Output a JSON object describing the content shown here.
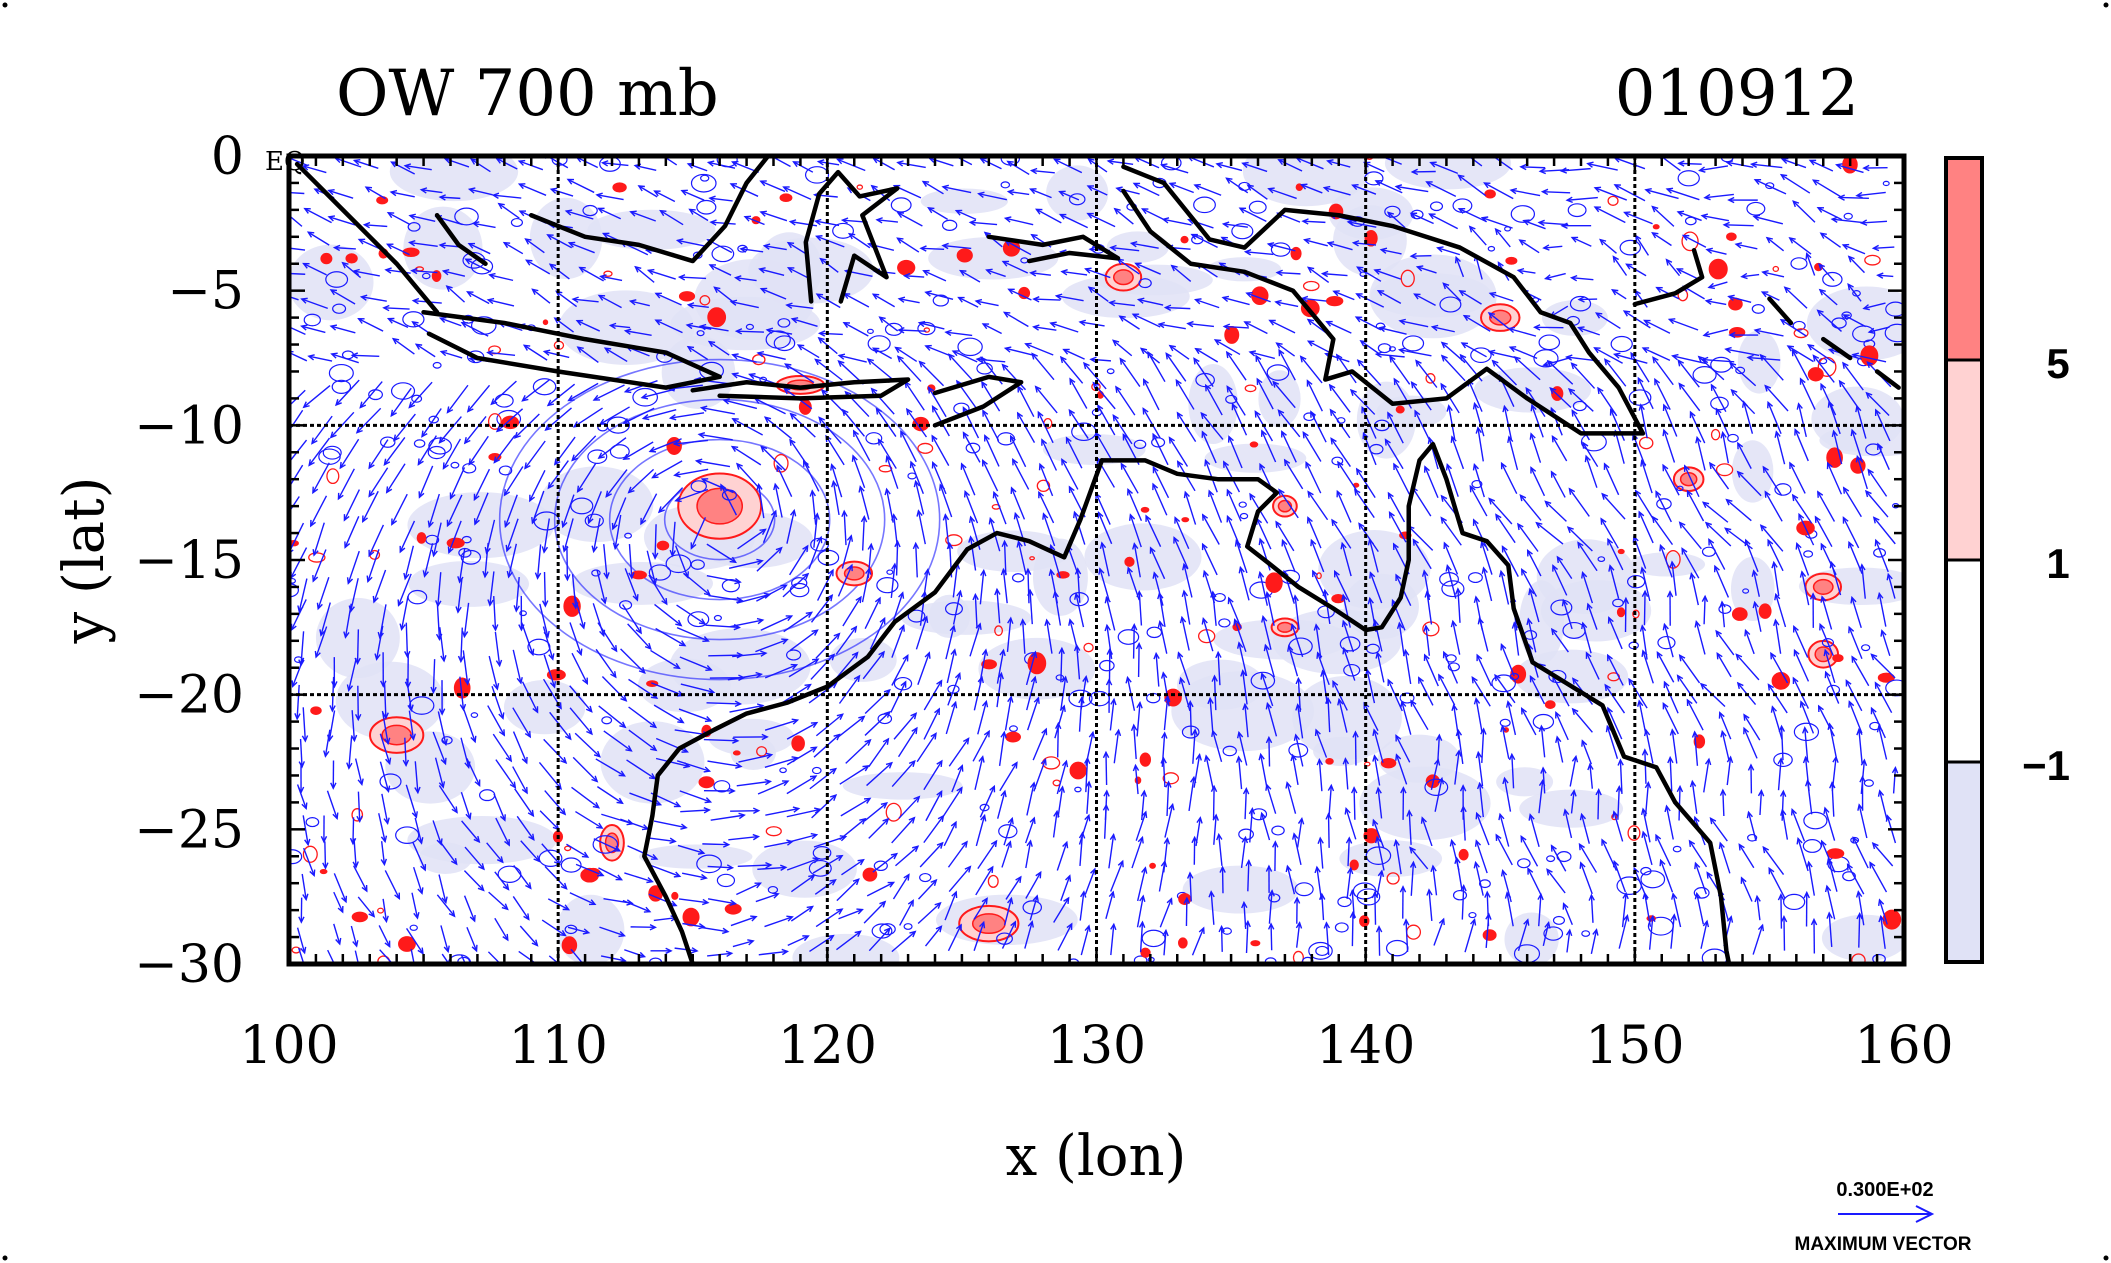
{
  "chart_data": {
    "type": "contour-vector-map",
    "title_left": "OW 700 mb",
    "title_right": "010912",
    "xlabel": "x (lon)",
    "ylabel": "y (lat)",
    "xlim": [
      100,
      160
    ],
    "ylim": [
      -30,
      0
    ],
    "x_ticks": [
      100,
      110,
      120,
      130,
      140,
      150,
      160
    ],
    "x_tick_labels": [
      "100",
      "110",
      "120",
      "130",
      "140",
      "150",
      "160"
    ],
    "y_ticks": [
      0,
      -5,
      -10,
      -15,
      -20,
      -25,
      -30
    ],
    "y_tick_labels": [
      "0",
      "−5",
      "−10",
      "−15",
      "−20",
      "−25",
      "−30"
    ],
    "corner_label": "EQ",
    "grid": true,
    "grid_lines_x": [
      110,
      120,
      130,
      140,
      150
    ],
    "grid_lines_y": [
      -10,
      -20
    ],
    "colorbar": {
      "levels": [
        "5",
        "1",
        "−1"
      ],
      "colors": [
        "#ff8282",
        "#ffd2d2",
        "#ffffff",
        "#e0e2f6"
      ]
    },
    "vector_key": {
      "label_top": "0.300E+02",
      "label_bottom": "MAXIMUM VECTOR"
    },
    "colors": {
      "vector": "#1a1aff",
      "positive_contour": "#ff1a1a",
      "negative_shade": "#e0e2f6",
      "coast": "#000000"
    },
    "features": {
      "cyclone_center": [
        116,
        -13.5
      ],
      "positive_blobs": [
        [
          104,
          -21.5,
          1.8,
          1.2
        ],
        [
          116,
          -13,
          2.8,
          2.2
        ],
        [
          121,
          -15.5,
          1.2,
          0.8
        ],
        [
          126,
          -28.5,
          2.0,
          1.2
        ],
        [
          131,
          -4.5,
          1.2,
          0.9
        ],
        [
          137,
          -13,
          0.8,
          0.7
        ],
        [
          145,
          -6,
          1.3,
          0.9
        ],
        [
          152,
          -12,
          1.0,
          0.8
        ],
        [
          157,
          -16,
          1.2,
          0.9
        ],
        [
          157,
          -18.5,
          1.0,
          0.9
        ],
        [
          119,
          -8.5,
          1.6,
          0.6
        ],
        [
          137,
          -17.5,
          0.9,
          0.6
        ],
        [
          112,
          -25.5,
          0.8,
          1.2
        ]
      ],
      "coastlines": [
        [
          [
            100.3,
            -0.3
          ],
          [
            102,
            -2
          ],
          [
            104,
            -4
          ],
          [
            105.5,
            -5.8
          ]
        ],
        [
          [
            105,
            -5.8
          ],
          [
            108,
            -6.2
          ],
          [
            111,
            -6.8
          ],
          [
            114,
            -7.3
          ],
          [
            116,
            -8.2
          ],
          [
            114,
            -8.6
          ],
          [
            110,
            -8.0
          ],
          [
            107,
            -7.5
          ],
          [
            105.2,
            -6.6
          ]
        ],
        [
          [
            115,
            -8.7
          ],
          [
            117,
            -8.4
          ],
          [
            119,
            -8.6
          ],
          [
            121,
            -8.4
          ],
          [
            123,
            -8.3
          ],
          [
            122,
            -8.9
          ],
          [
            119,
            -9.0
          ],
          [
            116,
            -8.9
          ]
        ],
        [
          [
            124,
            -8.8
          ],
          [
            126,
            -8.2
          ],
          [
            127.2,
            -8.4
          ],
          [
            125.8,
            -9.3
          ],
          [
            124,
            -10.0
          ]
        ],
        [
          [
            105.5,
            -2.2
          ],
          [
            106.3,
            -3.3
          ],
          [
            107.3,
            -4.0
          ]
        ],
        [
          [
            109,
            -2.2
          ],
          [
            111,
            -3.0
          ],
          [
            113,
            -3.3
          ],
          [
            115,
            -3.9
          ],
          [
            116.2,
            -2.6
          ],
          [
            117,
            -1.0
          ],
          [
            117.8,
            0
          ]
        ],
        [
          [
            119.4,
            -5.4
          ],
          [
            119.2,
            -3.2
          ],
          [
            119.7,
            -1.4
          ],
          [
            120.4,
            -0.6
          ],
          [
            121.2,
            -1.5
          ],
          [
            122.6,
            -1.2
          ],
          [
            121.3,
            -2.2
          ],
          [
            122.2,
            -4.5
          ],
          [
            121,
            -3.7
          ],
          [
            120.5,
            -5.4
          ]
        ],
        [
          [
            126,
            -3.0
          ],
          [
            128,
            -3.3
          ],
          [
            129.5,
            -3.0
          ],
          [
            130.8,
            -3.8
          ],
          [
            129,
            -3.6
          ],
          [
            127.5,
            -3.9
          ]
        ],
        [
          [
            131,
            -0.4
          ],
          [
            132.5,
            -1.0
          ],
          [
            134.2,
            -3.1
          ],
          [
            135.5,
            -3.4
          ],
          [
            137,
            -2.0
          ],
          [
            139,
            -2.2
          ],
          [
            141,
            -2.6
          ],
          [
            143.5,
            -3.4
          ],
          [
            145.5,
            -4.5
          ],
          [
            146.5,
            -5.8
          ],
          [
            147.6,
            -6.2
          ],
          [
            148.3,
            -7.3
          ],
          [
            149.4,
            -8.6
          ],
          [
            150.3,
            -10.3
          ],
          [
            148,
            -10.3
          ],
          [
            146,
            -9.0
          ],
          [
            144.5,
            -7.9
          ],
          [
            143,
            -9.0
          ],
          [
            141,
            -9.2
          ],
          [
            139.5,
            -8.0
          ],
          [
            138.5,
            -8.3
          ],
          [
            138.8,
            -6.8
          ],
          [
            137.3,
            -5.0
          ],
          [
            135.5,
            -4.3
          ],
          [
            133.5,
            -4.0
          ],
          [
            132,
            -2.8
          ],
          [
            131,
            -1.3
          ]
        ],
        [
          [
            150,
            -5.5
          ],
          [
            151.5,
            -5.1
          ],
          [
            152.5,
            -4.5
          ],
          [
            152.2,
            -3.5
          ]
        ],
        [
          [
            155,
            -5.3
          ],
          [
            155.8,
            -6.2
          ]
        ],
        [
          [
            157,
            -6.8
          ],
          [
            158,
            -7.5
          ]
        ],
        [
          [
            159,
            -8.0
          ],
          [
            159.8,
            -8.6
          ]
        ],
        [
          [
            130.2,
            -11.3
          ],
          [
            131.8,
            -11.3
          ],
          [
            133,
            -11.8
          ],
          [
            134.5,
            -12.0
          ],
          [
            136,
            -12.0
          ],
          [
            136.7,
            -12.5
          ],
          [
            136,
            -13.2
          ],
          [
            135.6,
            -14.5
          ],
          [
            136.5,
            -15.2
          ],
          [
            137.5,
            -16.0
          ],
          [
            138.8,
            -16.8
          ],
          [
            140,
            -17.6
          ],
          [
            140.6,
            -17.5
          ],
          [
            141.3,
            -16.4
          ],
          [
            141.6,
            -15.0
          ],
          [
            141.6,
            -13.0
          ],
          [
            142,
            -11.3
          ],
          [
            142.5,
            -10.7
          ],
          [
            143,
            -12.0
          ],
          [
            143.6,
            -14.0
          ],
          [
            144.5,
            -14.3
          ],
          [
            145.3,
            -15.2
          ],
          [
            145.5,
            -16.8
          ],
          [
            146.2,
            -18.8
          ],
          [
            147.5,
            -19.6
          ],
          [
            148.8,
            -20.4
          ],
          [
            149.6,
            -22.3
          ],
          [
            150.8,
            -22.7
          ],
          [
            151.5,
            -24.0
          ],
          [
            152.8,
            -25.5
          ],
          [
            153.2,
            -27.5
          ],
          [
            153.4,
            -29.5
          ],
          [
            153.5,
            -30
          ]
        ],
        [
          [
            130.2,
            -11.3
          ],
          [
            129.4,
            -13.5
          ],
          [
            128.8,
            -14.9
          ],
          [
            127.5,
            -14.3
          ],
          [
            126.3,
            -14.0
          ],
          [
            125.2,
            -14.6
          ],
          [
            124,
            -16.2
          ],
          [
            122.5,
            -17.3
          ],
          [
            121.5,
            -18.6
          ],
          [
            120,
            -19.7
          ],
          [
            118.5,
            -20.3
          ],
          [
            117,
            -20.7
          ],
          [
            115.8,
            -21.3
          ],
          [
            114.5,
            -22.0
          ],
          [
            113.7,
            -23.0
          ],
          [
            113.5,
            -24.5
          ],
          [
            113.2,
            -26.0
          ],
          [
            114,
            -27.5
          ],
          [
            114.6,
            -28.8
          ],
          [
            115,
            -30
          ]
        ]
      ]
    }
  }
}
